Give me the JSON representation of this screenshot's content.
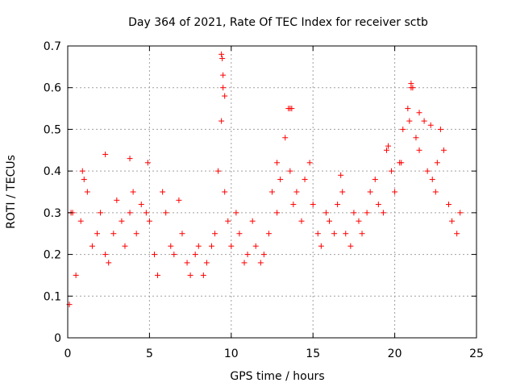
{
  "chart_data": {
    "type": "scatter",
    "title": "Day 364 of 2021, Rate Of TEC Index for receiver sctb",
    "xlabel": "GPS time / hours",
    "ylabel": "ROTI / TECUs",
    "xlim": [
      0,
      25
    ],
    "ylim": [
      0,
      0.7
    ],
    "xticks": [
      "0",
      "5",
      "10",
      "15",
      "20",
      "25"
    ],
    "yticks": [
      "0",
      "0.1",
      "0.2",
      "0.3",
      "0.4",
      "0.5",
      "0.6",
      "0.7"
    ],
    "grid": true,
    "marker": "plus",
    "color": "#ff0000",
    "series": [
      {
        "x": [
          0.1,
          0.3,
          0.5,
          0.8,
          1.0,
          1.2,
          1.5,
          1.8,
          2.0,
          2.3,
          2.5,
          2.8,
          3.0,
          3.3,
          3.5,
          3.8,
          4.0,
          4.2,
          4.5,
          4.8,
          5.0,
          5.3,
          5.5,
          5.8,
          6.0,
          6.3,
          6.5,
          6.8,
          7.0,
          7.3,
          7.5,
          7.8,
          8.0,
          8.3,
          8.5,
          8.8,
          9.0,
          9.2,
          9.4,
          9.5,
          9.6,
          9.8,
          10.0,
          10.3,
          10.5,
          10.8,
          11.0,
          11.3,
          11.5,
          11.8,
          12.0,
          12.3,
          12.5,
          12.8,
          13.0,
          13.3,
          13.5,
          13.6,
          13.8,
          14.0,
          14.3,
          14.5,
          14.8,
          15.0,
          15.3,
          15.5,
          15.8,
          16.0,
          16.3,
          16.5,
          16.8,
          17.0,
          17.3,
          17.5,
          17.8,
          18.0,
          18.3,
          18.5,
          18.8,
          19.0,
          19.3,
          19.5,
          19.8,
          20.0,
          20.3,
          20.5,
          20.8,
          21.0,
          21.3,
          21.5,
          21.8,
          22.0,
          22.3,
          22.5,
          22.8,
          23.0,
          23.3,
          23.5,
          23.8,
          24.0,
          0.2,
          0.9,
          2.3,
          3.8,
          4.9,
          9.4,
          9.45,
          9.5,
          9.6,
          12.8,
          13.6,
          13.7,
          16.7,
          19.6,
          20.4,
          20.9,
          21.0,
          21.1,
          21.5,
          22.2,
          22.6
        ],
        "y": [
          0.08,
          0.3,
          0.15,
          0.28,
          0.38,
          0.35,
          0.22,
          0.25,
          0.3,
          0.2,
          0.18,
          0.25,
          0.33,
          0.28,
          0.22,
          0.3,
          0.35,
          0.25,
          0.32,
          0.3,
          0.28,
          0.2,
          0.15,
          0.35,
          0.3,
          0.22,
          0.2,
          0.33,
          0.25,
          0.18,
          0.15,
          0.2,
          0.22,
          0.15,
          0.18,
          0.22,
          0.25,
          0.4,
          0.52,
          0.6,
          0.35,
          0.28,
          0.22,
          0.3,
          0.25,
          0.18,
          0.2,
          0.28,
          0.22,
          0.18,
          0.2,
          0.25,
          0.35,
          0.3,
          0.38,
          0.48,
          0.55,
          0.4,
          0.32,
          0.35,
          0.28,
          0.38,
          0.42,
          0.32,
          0.25,
          0.22,
          0.3,
          0.28,
          0.25,
          0.32,
          0.35,
          0.25,
          0.22,
          0.3,
          0.28,
          0.25,
          0.3,
          0.35,
          0.38,
          0.32,
          0.3,
          0.45,
          0.4,
          0.35,
          0.42,
          0.5,
          0.55,
          0.6,
          0.48,
          0.45,
          0.52,
          0.4,
          0.38,
          0.35,
          0.5,
          0.45,
          0.32,
          0.28,
          0.25,
          0.3,
          0.3,
          0.4,
          0.44,
          0.43,
          0.42,
          0.68,
          0.67,
          0.63,
          0.58,
          0.42,
          0.55,
          0.55,
          0.39,
          0.46,
          0.42,
          0.52,
          0.61,
          0.6,
          0.54,
          0.51,
          0.42
        ]
      }
    ]
  }
}
